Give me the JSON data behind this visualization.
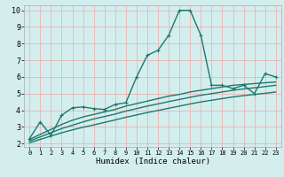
{
  "title": "",
  "xlabel": "Humidex (Indice chaleur)",
  "ylabel": "",
  "bg_color": "#d4eeee",
  "grid_color": "#e8b4b4",
  "line_color": "#1a7a6e",
  "xlim": [
    -0.5,
    23.5
  ],
  "ylim": [
    1.8,
    10.3
  ],
  "xticks": [
    0,
    1,
    2,
    3,
    4,
    5,
    6,
    7,
    8,
    9,
    10,
    11,
    12,
    13,
    14,
    15,
    16,
    17,
    18,
    19,
    20,
    21,
    22,
    23
  ],
  "yticks": [
    2,
    3,
    4,
    5,
    6,
    7,
    8,
    9,
    10
  ],
  "series": [
    {
      "x": [
        0,
        1,
        2,
        3,
        4,
        5,
        6,
        7,
        8,
        9,
        10,
        11,
        12,
        13,
        14,
        15,
        16,
        17,
        18,
        19,
        20,
        21,
        22,
        23
      ],
      "y": [
        2.3,
        3.3,
        2.5,
        3.7,
        4.15,
        4.2,
        4.1,
        4.05,
        4.35,
        4.45,
        6.0,
        7.3,
        7.6,
        8.5,
        10.0,
        10.0,
        8.5,
        5.5,
        5.5,
        5.3,
        5.5,
        5.0,
        6.2,
        6.0
      ],
      "marker": "+",
      "lw": 1.0
    },
    {
      "x": [
        0,
        1,
        2,
        3,
        4,
        5,
        6,
        7,
        8,
        9,
        10,
        11,
        12,
        13,
        14,
        15,
        16,
        17,
        18,
        19,
        20,
        21,
        22,
        23
      ],
      "y": [
        2.25,
        2.55,
        2.85,
        3.15,
        3.4,
        3.6,
        3.75,
        3.9,
        4.05,
        4.25,
        4.4,
        4.55,
        4.7,
        4.85,
        4.95,
        5.1,
        5.2,
        5.3,
        5.4,
        5.5,
        5.55,
        5.6,
        5.65,
        5.7
      ],
      "marker": null,
      "lw": 1.0
    },
    {
      "x": [
        0,
        1,
        2,
        3,
        4,
        5,
        6,
        7,
        8,
        9,
        10,
        11,
        12,
        13,
        14,
        15,
        16,
        17,
        18,
        19,
        20,
        21,
        22,
        23
      ],
      "y": [
        2.15,
        2.4,
        2.65,
        2.9,
        3.1,
        3.3,
        3.48,
        3.62,
        3.77,
        3.95,
        4.1,
        4.25,
        4.38,
        4.52,
        4.65,
        4.78,
        4.9,
        5.0,
        5.1,
        5.2,
        5.28,
        5.35,
        5.42,
        5.5
      ],
      "marker": null,
      "lw": 1.0
    },
    {
      "x": [
        0,
        1,
        2,
        3,
        4,
        5,
        6,
        7,
        8,
        9,
        10,
        11,
        12,
        13,
        14,
        15,
        16,
        17,
        18,
        19,
        20,
        21,
        22,
        23
      ],
      "y": [
        2.05,
        2.25,
        2.45,
        2.65,
        2.82,
        2.98,
        3.12,
        3.27,
        3.42,
        3.58,
        3.72,
        3.86,
        3.99,
        4.12,
        4.25,
        4.38,
        4.5,
        4.6,
        4.7,
        4.8,
        4.88,
        4.95,
        5.02,
        5.1
      ],
      "marker": null,
      "lw": 1.0
    }
  ]
}
